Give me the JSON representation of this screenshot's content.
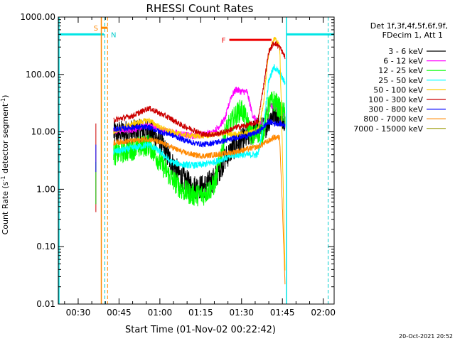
{
  "chart_data": {
    "type": "line",
    "title": "RHESSI Count Rates",
    "xlabel": "Start Time (01-Nov-02 00:22:42)",
    "ylabel_main": "Count Rate (s",
    "ylabel_sup1": "-1",
    "ylabel_mid": " detector segment",
    "ylabel_sup2": "-1",
    "ylabel_end": ")",
    "y_scale": "log",
    "ylim": [
      0.01,
      1000
    ],
    "xlim_minutes": [
      22.7,
      124
    ],
    "grid": false,
    "x_ticks": [
      {
        "m": 30,
        "label": "00:30"
      },
      {
        "m": 45,
        "label": "00:45"
      },
      {
        "m": 60,
        "label": "01:00"
      },
      {
        "m": 75,
        "label": "01:15"
      },
      {
        "m": 90,
        "label": "01:30"
      },
      {
        "m": 105,
        "label": "01:45"
      },
      {
        "m": 120,
        "label": "02:00"
      }
    ],
    "y_ticks": [
      {
        "v": 1000,
        "label": "1000.00"
      },
      {
        "v": 100,
        "label": "100.00"
      },
      {
        "v": 10,
        "label": "10.00"
      },
      {
        "v": 1,
        "label": "1.00"
      },
      {
        "v": 0.1,
        "label": "0.10"
      },
      {
        "v": 0.01,
        "label": "0.01"
      }
    ],
    "legend_header": [
      "Det 1f,3f,4f,5f,6f,9f,",
      "FDecim 1, Att 1"
    ],
    "legend_position": "right",
    "annotations": {
      "s_label": "S",
      "n_label": "N",
      "f_label": "F"
    },
    "night_intervals": [
      [
        22.7,
        39.5
      ],
      [
        106.5,
        124
      ]
    ],
    "saa_interval": [
      38.5,
      40.8
    ],
    "flare_interval": [
      85.5,
      101
    ],
    "series": [
      {
        "name": "3 - 6 keV",
        "color": "#000000",
        "noise": 0.22,
        "points": [
          [
            43,
            9.5
          ],
          [
            50,
            10
          ],
          [
            56,
            10.5
          ],
          [
            60,
            7
          ],
          [
            64,
            3
          ],
          [
            68,
            1.6
          ],
          [
            72,
            1.1
          ],
          [
            76,
            1.1
          ],
          [
            80,
            1.5
          ],
          [
            84,
            3.5
          ],
          [
            88,
            6
          ],
          [
            92,
            8
          ],
          [
            96,
            12
          ],
          [
            98,
            11
          ],
          [
            100,
            16
          ],
          [
            102,
            22
          ],
          [
            104,
            20
          ],
          [
            106,
            17
          ]
        ]
      },
      {
        "name": "6 - 12 keV",
        "color": "#ff00ff",
        "noise": 0.06,
        "points": [
          [
            43,
            10.5
          ],
          [
            50,
            11
          ],
          [
            56,
            13
          ],
          [
            60,
            11
          ],
          [
            64,
            10
          ],
          [
            68,
            9
          ],
          [
            72,
            8.5
          ],
          [
            76,
            9
          ],
          [
            80,
            10
          ],
          [
            84,
            17
          ],
          [
            86,
            40
          ],
          [
            88,
            55
          ],
          [
            90,
            50
          ],
          [
            92,
            50
          ],
          [
            94,
            20
          ],
          [
            96,
            14
          ],
          [
            98,
            14
          ],
          [
            100,
            30
          ],
          [
            102,
            28
          ],
          [
            104,
            22
          ],
          [
            106,
            20
          ]
        ]
      },
      {
        "name": "12 - 25 keV",
        "color": "#00ff00",
        "noise": 0.2,
        "points": [
          [
            43,
            4
          ],
          [
            50,
            5
          ],
          [
            56,
            6
          ],
          [
            60,
            3
          ],
          [
            64,
            1.6
          ],
          [
            68,
            1
          ],
          [
            72,
            0.8
          ],
          [
            76,
            0.8
          ],
          [
            80,
            1.2
          ],
          [
            82,
            3
          ],
          [
            84,
            10
          ],
          [
            86,
            14
          ],
          [
            88,
            20
          ],
          [
            90,
            25
          ],
          [
            92,
            15
          ],
          [
            94,
            8
          ],
          [
            96,
            10
          ],
          [
            98,
            10
          ],
          [
            100,
            30
          ],
          [
            102,
            35
          ],
          [
            104,
            25
          ],
          [
            106,
            20
          ]
        ]
      },
      {
        "name": "25 - 50 keV",
        "color": "#00ffff",
        "noise": 0.06,
        "points": [
          [
            43,
            4.5
          ],
          [
            50,
            5.2
          ],
          [
            56,
            6
          ],
          [
            60,
            4.5
          ],
          [
            64,
            3
          ],
          [
            68,
            2.7
          ],
          [
            72,
            2.6
          ],
          [
            76,
            2.7
          ],
          [
            80,
            3
          ],
          [
            84,
            3.5
          ],
          [
            88,
            4
          ],
          [
            92,
            4
          ],
          [
            96,
            4
          ],
          [
            98,
            12
          ],
          [
            100,
            80
          ],
          [
            102,
            135
          ],
          [
            104,
            105
          ],
          [
            106,
            70
          ]
        ]
      },
      {
        "name": "50 - 100 keV",
        "color": "#ffcc00",
        "noise": 0.05,
        "points": [
          [
            43,
            10
          ],
          [
            50,
            14
          ],
          [
            56,
            16
          ],
          [
            60,
            12
          ],
          [
            64,
            10
          ],
          [
            68,
            9
          ],
          [
            72,
            8.5
          ],
          [
            76,
            8.5
          ],
          [
            80,
            9
          ],
          [
            84,
            9.5
          ],
          [
            88,
            9
          ],
          [
            92,
            9.5
          ],
          [
            96,
            11
          ],
          [
            98,
            30
          ],
          [
            100,
            250
          ],
          [
            102,
            420
          ],
          [
            104,
            320
          ],
          [
            105,
            5
          ],
          [
            106,
            0.03
          ]
        ]
      },
      {
        "name": "100 - 300 keV",
        "color": "#cc0000",
        "noise": 0.05,
        "points": [
          [
            43,
            16
          ],
          [
            50,
            19
          ],
          [
            56,
            26
          ],
          [
            60,
            21
          ],
          [
            64,
            17
          ],
          [
            68,
            13
          ],
          [
            72,
            11
          ],
          [
            76,
            9
          ],
          [
            80,
            9
          ],
          [
            84,
            10
          ],
          [
            88,
            12
          ],
          [
            92,
            13
          ],
          [
            96,
            15
          ],
          [
            98,
            60
          ],
          [
            100,
            250
          ],
          [
            102,
            360
          ],
          [
            104,
            300
          ],
          [
            106,
            200
          ]
        ]
      },
      {
        "name": "300 - 800 keV",
        "color": "#0000ff",
        "noise": 0.05,
        "points": [
          [
            43,
            11
          ],
          [
            50,
            12
          ],
          [
            56,
            12
          ],
          [
            60,
            10
          ],
          [
            64,
            9
          ],
          [
            68,
            7.5
          ],
          [
            72,
            6.5
          ],
          [
            76,
            6
          ],
          [
            80,
            6.5
          ],
          [
            84,
            7
          ],
          [
            88,
            8
          ],
          [
            92,
            8.5
          ],
          [
            96,
            10
          ],
          [
            98,
            12
          ],
          [
            100,
            15
          ],
          [
            102,
            14
          ],
          [
            104,
            14
          ],
          [
            106,
            13
          ]
        ]
      },
      {
        "name": "800 - 7000 keV",
        "color": "#ff8800",
        "noise": 0.05,
        "points": [
          [
            43,
            6.5
          ],
          [
            50,
            7
          ],
          [
            56,
            7.5
          ],
          [
            60,
            6.5
          ],
          [
            64,
            5.5
          ],
          [
            68,
            4.5
          ],
          [
            72,
            4
          ],
          [
            76,
            3.8
          ],
          [
            80,
            4
          ],
          [
            84,
            4.2
          ],
          [
            88,
            4.5
          ],
          [
            92,
            5
          ],
          [
            96,
            5.5
          ],
          [
            100,
            7
          ],
          [
            102,
            8
          ],
          [
            104,
            8
          ],
          [
            105,
            0.5
          ],
          [
            106,
            0.02
          ]
        ]
      },
      {
        "name": "7000 - 15000 keV",
        "color": "#999900",
        "noise": 0.0,
        "points": []
      }
    ]
  },
  "footer_timestamp": "20-Oct-2021 20:52"
}
